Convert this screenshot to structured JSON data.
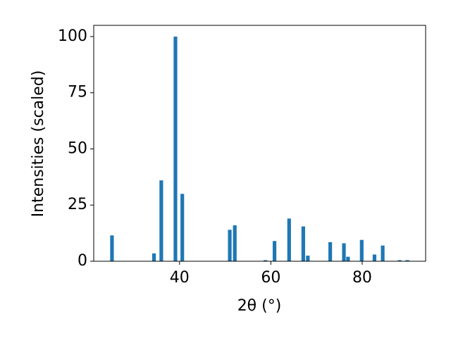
{
  "chart_data": {
    "type": "bar",
    "x": [
      25.2,
      34.4,
      36.0,
      39.1,
      40.6,
      51.0,
      52.1,
      58.8,
      60.8,
      64.0,
      67.1,
      68.1,
      73.0,
      76.0,
      76.9,
      79.9,
      82.7,
      84.5,
      88.2,
      89.9
    ],
    "values": [
      11.5,
      3.5,
      36,
      100,
      30,
      14,
      16,
      0.5,
      9,
      19,
      15.5,
      2.5,
      8.5,
      8,
      2,
      9.5,
      3,
      7,
      0.5,
      0.5
    ],
    "color": "#1f77b4",
    "xlabel": "2θ (°)",
    "ylabel": "Intensities (scaled)",
    "xlim": [
      21.2,
      93.9
    ],
    "xticks": [
      40,
      60,
      80
    ],
    "ylim": [
      0,
      105
    ],
    "yticks": [
      0,
      25,
      50,
      75,
      100
    ]
  }
}
